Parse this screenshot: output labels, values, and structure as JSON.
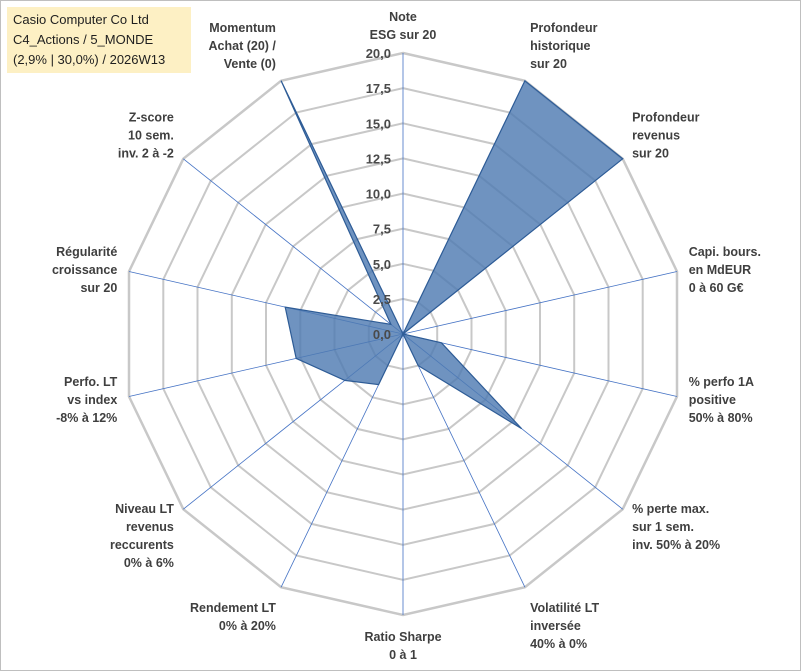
{
  "header": {
    "title_line1": "Casio Computer Co Ltd",
    "title_line2": "C4_Actions / 5_MONDE",
    "title_line3": "(2,9% | 30,0%) / 2026W13"
  },
  "chart_data": {
    "type": "radar",
    "rlim": [
      0,
      20
    ],
    "ticks": [
      "0,0",
      "2,5",
      "5,0",
      "7,5",
      "10,0",
      "12,5",
      "15,0",
      "17,5",
      "20,0"
    ],
    "axes": [
      [
        "Note",
        "ESG sur 20"
      ],
      [
        "Profondeur",
        "historique",
        "sur 20"
      ],
      [
        "Profondeur",
        "revenus",
        "sur 20"
      ],
      [
        "Capi. bours.",
        "en MdEUR",
        "0 à 60 G€"
      ],
      [
        "% perfo 1A",
        "positive",
        "50% à 80%"
      ],
      [
        "% perte max.",
        "sur 1 sem.",
        "inv. 50% à 20%"
      ],
      [
        "Volatilité LT",
        "inversée",
        "40% à 0%"
      ],
      [
        "Ratio Sharpe",
        "0 à 1"
      ],
      [
        "Rendement LT",
        "0% à 20%"
      ],
      [
        "Niveau LT",
        "revenus",
        "reccurents",
        "0% à 6%"
      ],
      [
        "Perfo. LT",
        "vs index",
        "-8% à 12%"
      ],
      [
        "Régularité",
        "croissance",
        "sur 20"
      ],
      [
        "Z-score",
        "10 sem.",
        "inv. 2 à -2"
      ],
      [
        "Momentum",
        "Achat (20) /",
        "Vente (0)"
      ]
    ],
    "series": [
      {
        "name": "Casio Computer Co Ltd",
        "values": [
          0,
          20,
          20,
          0,
          2.8,
          10.8,
          2.5,
          0,
          4,
          5.3,
          7.8,
          8.6,
          1.1,
          20
        ]
      }
    ],
    "colors": {
      "fill": "#4f7bb2",
      "stroke": "#2e5c96",
      "grid": "#c8c8c8",
      "spoke": "#4472c4"
    }
  }
}
